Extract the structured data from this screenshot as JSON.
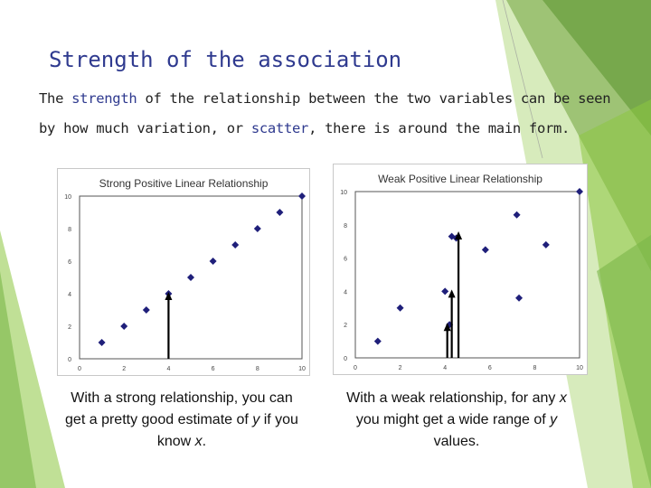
{
  "slide": {
    "title": "Strength of the association",
    "body": {
      "t1": "The ",
      "k1": "strength",
      "t2": " of the relationship between the two variables can be seen by how much variation, or ",
      "k2": "scatter",
      "t3": ", there is around the main form."
    },
    "captions": {
      "left": {
        "a": "With a strong relationship, you can get a pretty good estimate of ",
        "v1": "y",
        "b": " if you know ",
        "v2": "x",
        "c": "."
      },
      "right": {
        "a": "With a weak relationship, for any ",
        "v1": "x",
        "b": " you might get a wide range of ",
        "v2": "y",
        "c": " values."
      }
    },
    "colors": {
      "accent": "#2f3a8f",
      "marker": "#1f1f7a",
      "deco_green": "#8cc63f"
    }
  },
  "chart_data": [
    {
      "type": "scatter",
      "title": "Strong Positive Linear Relationship",
      "xlim": [
        0,
        10
      ],
      "ylim": [
        0,
        10
      ],
      "xticks": [
        "0",
        "2",
        "4",
        "6",
        "8",
        "10"
      ],
      "yticks": [
        "0",
        "2",
        "4",
        "6",
        "8",
        "10"
      ],
      "points": [
        [
          1,
          1
        ],
        [
          2,
          2
        ],
        [
          3,
          3
        ],
        [
          4,
          4
        ],
        [
          5,
          5
        ],
        [
          6,
          6
        ],
        [
          7,
          7
        ],
        [
          8,
          8
        ],
        [
          9,
          9
        ],
        [
          10,
          10
        ]
      ],
      "arrows": [
        {
          "x": 4,
          "y_from": 0,
          "y_to": 4
        }
      ],
      "grid": false
    },
    {
      "type": "scatter",
      "title": "Weak Positive Linear Relationship",
      "xlim": [
        0,
        10
      ],
      "ylim": [
        0,
        10
      ],
      "xticks": [
        "0",
        "2",
        "4",
        "6",
        "8",
        "10"
      ],
      "yticks": [
        "0",
        "2",
        "4",
        "6",
        "8",
        "10"
      ],
      "points": [
        [
          1,
          1
        ],
        [
          2,
          3
        ],
        [
          4,
          4
        ],
        [
          4.2,
          2
        ],
        [
          4.3,
          7.3
        ],
        [
          4.5,
          7.2
        ],
        [
          5.8,
          6.5
        ],
        [
          7.2,
          8.6
        ],
        [
          7.3,
          3.6
        ],
        [
          8.5,
          6.8
        ],
        [
          10,
          10
        ]
      ],
      "arrows": [
        {
          "x": 4.1,
          "y_from": 0,
          "y_to": 2
        },
        {
          "x": 4.3,
          "y_from": 0,
          "y_to": 4
        },
        {
          "x": 4.6,
          "y_from": 0,
          "y_to": 7.5
        }
      ],
      "grid": false
    }
  ]
}
